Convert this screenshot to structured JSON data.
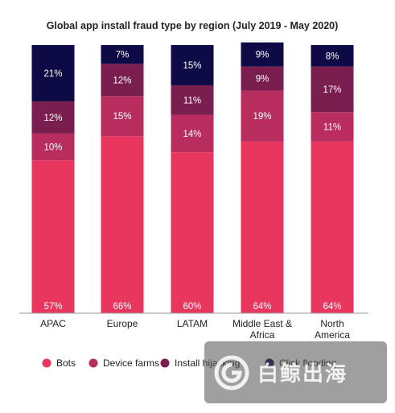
{
  "chart_data": {
    "type": "bar",
    "stacked": true,
    "title": "Global app install fraud type by region (July 2019 - May 2020)",
    "categories": [
      [
        "APAC"
      ],
      [
        "Europe"
      ],
      [
        "LATAM"
      ],
      [
        "Middle East &",
        "Africa"
      ],
      [
        "North",
        "America"
      ]
    ],
    "series": [
      {
        "name": "Bots",
        "color": "#e8365f",
        "values": [
          57,
          66,
          60,
          64,
          64
        ]
      },
      {
        "name": "Device farms",
        "color": "#b92c5e",
        "values": [
          10,
          15,
          14,
          19,
          11
        ]
      },
      {
        "name": "Install hijacking",
        "color": "#7a1d4f",
        "values": [
          12,
          12,
          11,
          9,
          17
        ]
      },
      {
        "name": "Click flooding",
        "color": "#0e0a45",
        "values": [
          21,
          7,
          15,
          9,
          8
        ]
      }
    ],
    "value_suffix": "%",
    "ylim": [
      0,
      100
    ],
    "grid": false,
    "legend_position": "bottom"
  },
  "watermark": {
    "text": "白鲸出海"
  }
}
